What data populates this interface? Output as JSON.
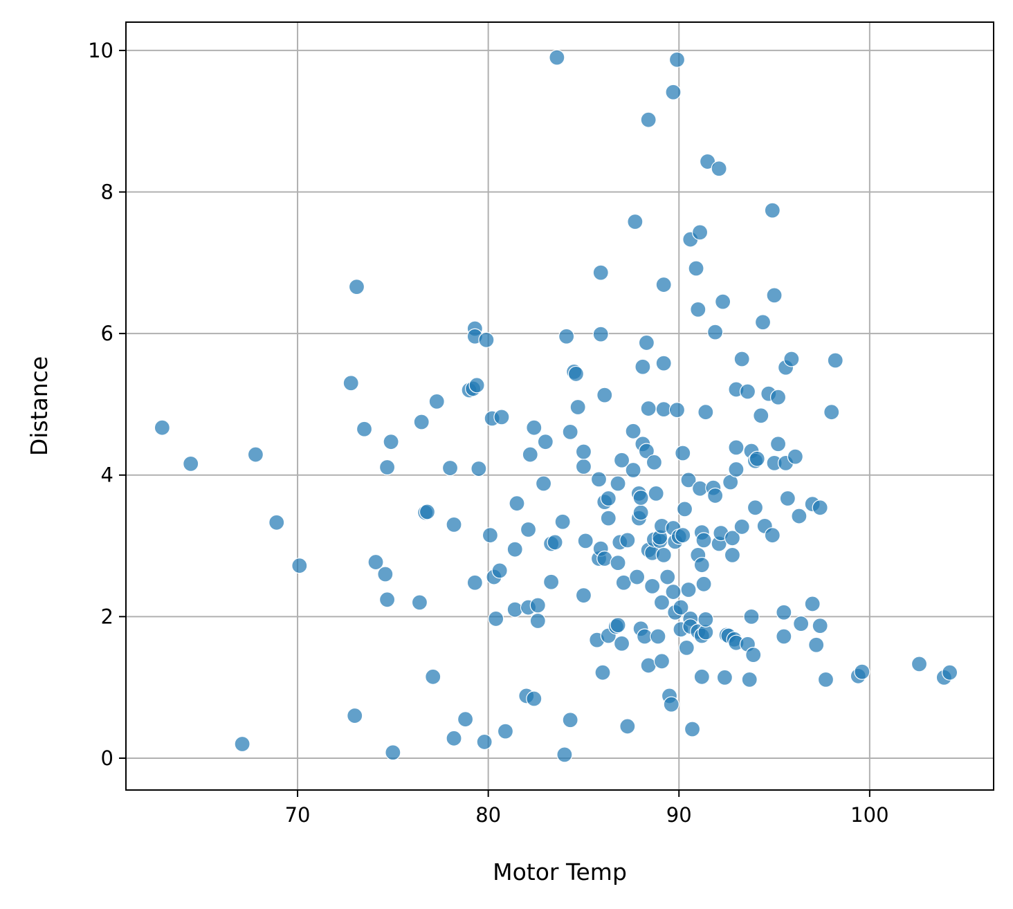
{
  "chart_data": {
    "type": "scatter",
    "title": "",
    "xlabel": "Motor Temp",
    "ylabel": "Distance",
    "xlim": [
      61,
      106.5
    ],
    "ylim": [
      -0.45,
      10.4
    ],
    "xticks": [
      70,
      80,
      90,
      100
    ],
    "yticks": [
      0,
      2,
      4,
      6,
      8,
      10
    ],
    "grid": true,
    "color": "#1f77b4",
    "opacity": 0.7,
    "points": [
      [
        62.9,
        4.67
      ],
      [
        64.4,
        4.16
      ],
      [
        67.1,
        0.2
      ],
      [
        67.8,
        4.29
      ],
      [
        68.9,
        3.33
      ],
      [
        70.1,
        2.72
      ],
      [
        72.8,
        5.3
      ],
      [
        73.0,
        0.6
      ],
      [
        73.1,
        6.66
      ],
      [
        73.5,
        4.65
      ],
      [
        74.1,
        2.77
      ],
      [
        74.6,
        2.6
      ],
      [
        74.7,
        2.24
      ],
      [
        74.7,
        4.11
      ],
      [
        74.9,
        4.47
      ],
      [
        75.0,
        0.08
      ],
      [
        76.4,
        2.2
      ],
      [
        76.5,
        4.75
      ],
      [
        76.7,
        3.47
      ],
      [
        76.8,
        3.48
      ],
      [
        77.1,
        1.15
      ],
      [
        77.3,
        5.04
      ],
      [
        78.0,
        4.1
      ],
      [
        78.2,
        3.3
      ],
      [
        78.2,
        0.28
      ],
      [
        78.8,
        0.55
      ],
      [
        79.0,
        5.2
      ],
      [
        79.2,
        5.22
      ],
      [
        79.3,
        2.48
      ],
      [
        79.3,
        6.07
      ],
      [
        79.3,
        5.96
      ],
      [
        79.4,
        5.27
      ],
      [
        79.5,
        4.09
      ],
      [
        79.8,
        0.23
      ],
      [
        79.9,
        5.91
      ],
      [
        80.1,
        3.15
      ],
      [
        80.2,
        4.8
      ],
      [
        80.3,
        2.56
      ],
      [
        80.4,
        1.97
      ],
      [
        80.6,
        2.65
      ],
      [
        80.7,
        4.82
      ],
      [
        80.9,
        0.38
      ],
      [
        81.4,
        2.1
      ],
      [
        81.4,
        2.95
      ],
      [
        81.5,
        3.6
      ],
      [
        82.0,
        0.88
      ],
      [
        82.1,
        3.23
      ],
      [
        82.1,
        2.13
      ],
      [
        82.2,
        4.29
      ],
      [
        82.4,
        4.67
      ],
      [
        82.4,
        0.84
      ],
      [
        82.6,
        2.16
      ],
      [
        82.6,
        1.94
      ],
      [
        82.9,
        3.88
      ],
      [
        83.0,
        4.47
      ],
      [
        83.3,
        2.49
      ],
      [
        83.3,
        3.03
      ],
      [
        83.5,
        3.05
      ],
      [
        83.6,
        9.9
      ],
      [
        83.9,
        3.34
      ],
      [
        84.0,
        0.05
      ],
      [
        84.1,
        5.96
      ],
      [
        84.3,
        0.54
      ],
      [
        84.3,
        4.61
      ],
      [
        84.5,
        5.46
      ],
      [
        84.6,
        5.43
      ],
      [
        84.7,
        4.96
      ],
      [
        85.0,
        4.12
      ],
      [
        85.0,
        4.33
      ],
      [
        85.0,
        2.3
      ],
      [
        85.1,
        3.07
      ],
      [
        85.7,
        1.67
      ],
      [
        85.8,
        2.82
      ],
      [
        85.8,
        3.94
      ],
      [
        85.9,
        2.96
      ],
      [
        85.9,
        5.99
      ],
      [
        85.9,
        6.86
      ],
      [
        86.0,
        1.21
      ],
      [
        86.1,
        5.13
      ],
      [
        86.1,
        2.82
      ],
      [
        86.1,
        3.62
      ],
      [
        86.3,
        1.73
      ],
      [
        86.3,
        3.39
      ],
      [
        86.3,
        3.67
      ],
      [
        86.7,
        1.86
      ],
      [
        86.8,
        1.88
      ],
      [
        86.8,
        2.76
      ],
      [
        86.8,
        3.88
      ],
      [
        86.9,
        3.05
      ],
      [
        87.0,
        1.62
      ],
      [
        87.0,
        4.21
      ],
      [
        87.1,
        2.48
      ],
      [
        87.3,
        3.08
      ],
      [
        87.3,
        0.45
      ],
      [
        87.6,
        4.62
      ],
      [
        87.6,
        4.07
      ],
      [
        87.7,
        7.58
      ],
      [
        87.8,
        2.56
      ],
      [
        87.9,
        3.74
      ],
      [
        87.9,
        3.39
      ],
      [
        88.0,
        1.83
      ],
      [
        88.0,
        3.47
      ],
      [
        88.0,
        3.68
      ],
      [
        88.1,
        5.53
      ],
      [
        88.1,
        4.44
      ],
      [
        88.2,
        1.72
      ],
      [
        88.3,
        4.34
      ],
      [
        88.3,
        5.87
      ],
      [
        88.4,
        9.02
      ],
      [
        88.4,
        4.94
      ],
      [
        88.4,
        1.31
      ],
      [
        88.4,
        2.94
      ],
      [
        88.6,
        2.43
      ],
      [
        88.6,
        2.9
      ],
      [
        88.7,
        3.09
      ],
      [
        88.7,
        4.18
      ],
      [
        88.8,
        3.74
      ],
      [
        88.9,
        1.72
      ],
      [
        89.0,
        3.07
      ],
      [
        89.0,
        3.12
      ],
      [
        89.1,
        2.2
      ],
      [
        89.1,
        3.28
      ],
      [
        89.1,
        1.37
      ],
      [
        89.2,
        5.58
      ],
      [
        89.2,
        4.93
      ],
      [
        89.2,
        2.87
      ],
      [
        89.2,
        6.69
      ],
      [
        89.4,
        2.56
      ],
      [
        89.5,
        0.88
      ],
      [
        89.6,
        0.76
      ],
      [
        89.7,
        9.41
      ],
      [
        89.7,
        3.25
      ],
      [
        89.7,
        2.35
      ],
      [
        89.8,
        2.06
      ],
      [
        89.8,
        3.06
      ],
      [
        89.9,
        4.92
      ],
      [
        89.9,
        9.87
      ],
      [
        90.0,
        3.13
      ],
      [
        90.1,
        2.13
      ],
      [
        90.1,
        1.82
      ],
      [
        90.2,
        3.15
      ],
      [
        90.2,
        4.31
      ],
      [
        90.3,
        3.52
      ],
      [
        90.4,
        1.56
      ],
      [
        90.5,
        2.38
      ],
      [
        90.5,
        3.93
      ],
      [
        90.6,
        1.97
      ],
      [
        90.6,
        7.33
      ],
      [
        90.6,
        1.86
      ],
      [
        90.7,
        0.41
      ],
      [
        90.9,
        6.92
      ],
      [
        91.0,
        6.34
      ],
      [
        91.0,
        2.87
      ],
      [
        91.0,
        1.79
      ],
      [
        91.1,
        7.43
      ],
      [
        91.1,
        3.81
      ],
      [
        91.2,
        1.73
      ],
      [
        91.2,
        2.73
      ],
      [
        91.2,
        3.19
      ],
      [
        91.2,
        1.15
      ],
      [
        91.3,
        2.46
      ],
      [
        91.3,
        3.08
      ],
      [
        91.4,
        1.78
      ],
      [
        91.4,
        1.96
      ],
      [
        91.4,
        4.89
      ],
      [
        91.5,
        8.43
      ],
      [
        91.8,
        3.82
      ],
      [
        91.9,
        3.71
      ],
      [
        91.9,
        6.02
      ],
      [
        92.1,
        8.33
      ],
      [
        92.1,
        3.03
      ],
      [
        92.2,
        3.18
      ],
      [
        92.3,
        6.45
      ],
      [
        92.4,
        1.14
      ],
      [
        92.5,
        1.74
      ],
      [
        92.6,
        1.73
      ],
      [
        92.7,
        3.9
      ],
      [
        92.8,
        2.87
      ],
      [
        92.8,
        3.11
      ],
      [
        92.9,
        1.68
      ],
      [
        93.0,
        5.21
      ],
      [
        93.0,
        4.39
      ],
      [
        93.0,
        1.63
      ],
      [
        93.0,
        4.08
      ],
      [
        93.3,
        3.27
      ],
      [
        93.3,
        5.64
      ],
      [
        93.6,
        1.61
      ],
      [
        93.6,
        5.18
      ],
      [
        93.7,
        1.11
      ],
      [
        93.8,
        2.0
      ],
      [
        93.8,
        4.34
      ],
      [
        93.9,
        1.46
      ],
      [
        94.0,
        4.2
      ],
      [
        94.0,
        3.54
      ],
      [
        94.1,
        4.23
      ],
      [
        94.3,
        4.84
      ],
      [
        94.4,
        6.16
      ],
      [
        94.5,
        3.28
      ],
      [
        94.7,
        5.15
      ],
      [
        94.9,
        3.15
      ],
      [
        94.9,
        7.74
      ],
      [
        95.0,
        4.17
      ],
      [
        95.0,
        6.54
      ],
      [
        95.2,
        5.1
      ],
      [
        95.2,
        4.44
      ],
      [
        95.5,
        2.06
      ],
      [
        95.5,
        1.72
      ],
      [
        95.6,
        5.52
      ],
      [
        95.6,
        4.17
      ],
      [
        95.7,
        3.67
      ],
      [
        95.9,
        5.64
      ],
      [
        96.1,
        4.26
      ],
      [
        96.3,
        3.42
      ],
      [
        96.4,
        1.9
      ],
      [
        97.0,
        3.59
      ],
      [
        97.0,
        2.18
      ],
      [
        97.2,
        1.6
      ],
      [
        97.4,
        1.87
      ],
      [
        97.4,
        3.54
      ],
      [
        97.7,
        1.11
      ],
      [
        98.0,
        4.89
      ],
      [
        98.2,
        5.62
      ],
      [
        99.4,
        1.16
      ],
      [
        99.6,
        1.22
      ],
      [
        102.6,
        1.33
      ],
      [
        103.9,
        1.14
      ],
      [
        104.2,
        1.21
      ]
    ]
  }
}
